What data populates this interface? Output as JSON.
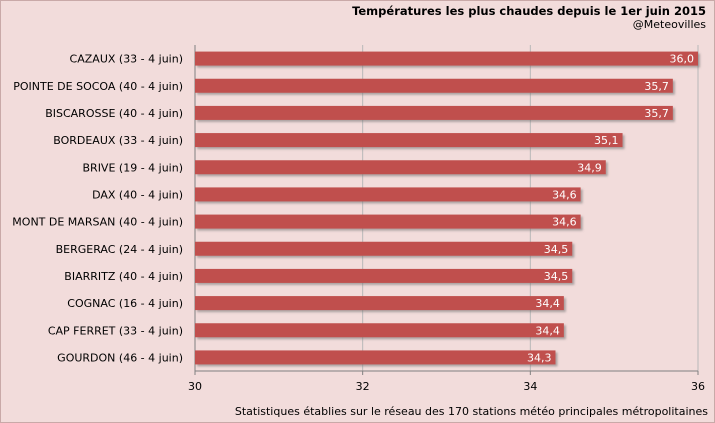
{
  "chart_data": {
    "type": "bar",
    "orientation": "horizontal",
    "title": "Températures les plus chaudes depuis le 1er juin  2015",
    "subtitle": "@Meteovilles",
    "footnote": "Statistiques établies sur le réseau des 170 stations météo principales métropolitaines",
    "categories": [
      "CAZAUX (33 - 4 juin)",
      "POINTE DE SOCOA (40 - 4 juin)",
      "BISCAROSSE (40 - 4 juin)",
      "BORDEAUX (33 - 4 juin)",
      "BRIVE (19 - 4 juin)",
      "DAX (40 - 4 juin)",
      "MONT DE MARSAN (40 - 4 juin)",
      "BERGERAC (24 - 4 juin)",
      "BIARRITZ (40 - 4 juin)",
      "COGNAC (16 - 4 juin)",
      "CAP FERRET (33 - 4 juin)",
      "GOURDON (46 - 4 juin)"
    ],
    "values": [
      36.0,
      35.7,
      35.7,
      35.1,
      34.9,
      34.6,
      34.6,
      34.5,
      34.5,
      34.4,
      34.4,
      34.3
    ],
    "value_labels": [
      "36,0",
      "35,7",
      "35,7",
      "35,1",
      "34,9",
      "34,6",
      "34,6",
      "34,5",
      "34,5",
      "34,4",
      "34,4",
      "34,3"
    ],
    "xlim": [
      30,
      36
    ],
    "xticks": [
      "30",
      "32",
      "34",
      "36"
    ],
    "grid": true,
    "colors": {
      "bar": "#c0504d",
      "bar_shadow": "#9a9a9a",
      "background": "#f2dcdb",
      "grid": "#b8b8b8",
      "axis": "#808080"
    }
  }
}
